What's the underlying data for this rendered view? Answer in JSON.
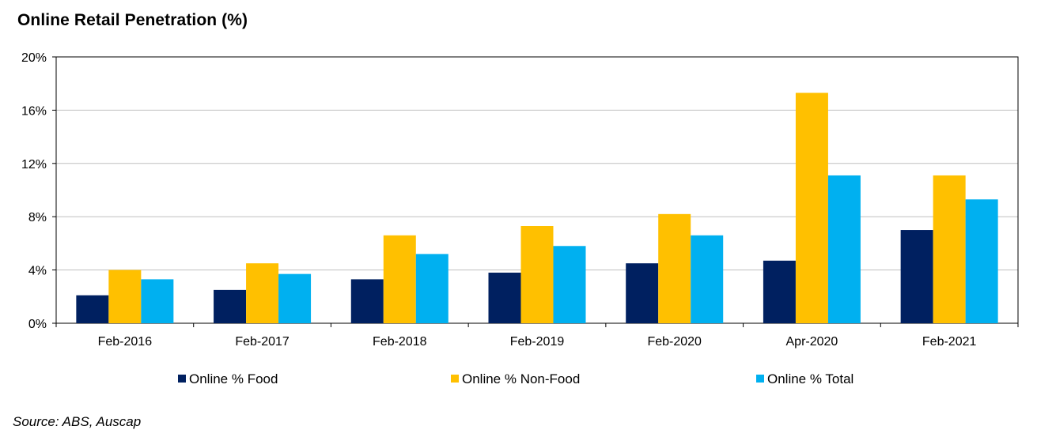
{
  "chart_data": {
    "type": "bar",
    "title": "Online Retail Penetration (%)",
    "xlabel": "",
    "ylabel": "",
    "categories": [
      "Feb-2016",
      "Feb-2017",
      "Feb-2018",
      "Feb-2019",
      "Feb-2020",
      "Apr-2020",
      "Feb-2021"
    ],
    "series": [
      {
        "name": "Online % Food",
        "color": "#002060",
        "values": [
          2.1,
          2.5,
          3.3,
          3.8,
          4.5,
          4.7,
          7.0
        ]
      },
      {
        "name": "Online % Non-Food",
        "color": "#FFC000",
        "values": [
          4.0,
          4.5,
          6.6,
          7.3,
          8.2,
          17.3,
          11.1
        ]
      },
      {
        "name": "Online % Total",
        "color": "#00B0F0",
        "values": [
          3.3,
          3.7,
          5.2,
          5.8,
          6.6,
          11.1,
          9.3
        ]
      }
    ],
    "ylim": [
      0,
      20
    ],
    "yticks": [
      0,
      4,
      8,
      12,
      16,
      20
    ],
    "ytick_labels": [
      "0%",
      "4%",
      "8%",
      "12%",
      "16%",
      "20%"
    ],
    "grid": true,
    "legend_position": "bottom"
  },
  "footer": {
    "source": "Source: ABS, Auscap"
  }
}
